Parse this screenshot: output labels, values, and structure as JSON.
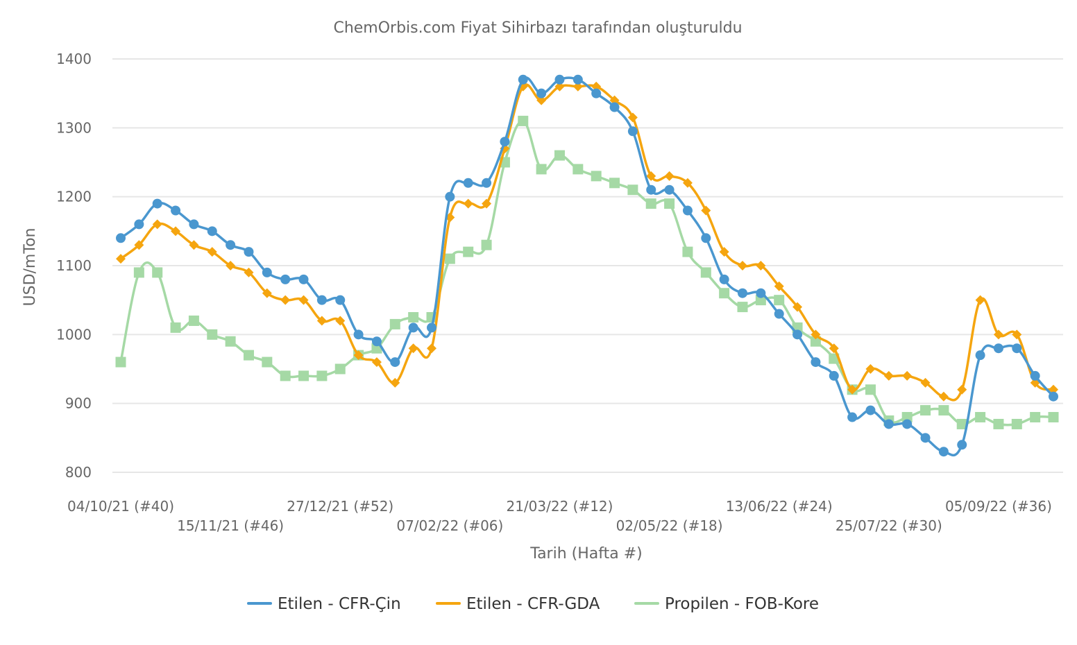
{
  "chart_data": {
    "type": "line",
    "subtitle": "ChemOrbis.com Fiyat Sihirbazı tarafından oluşturuldu",
    "xlabel": "Tarih (Hafta #)",
    "ylabel": "USD/mTon",
    "ylim": [
      800,
      1400
    ],
    "yticks": [
      "800",
      "900",
      "1000",
      "1100",
      "1200",
      "1300",
      "1400"
    ],
    "grid": "horizontal",
    "legend_position": "bottom",
    "x_tick_labels": [
      {
        "index": 0,
        "label": "04/10/21 (#40)",
        "row": 0
      },
      {
        "index": 6,
        "label": "15/11/21 (#46)",
        "row": 1
      },
      {
        "index": 12,
        "label": "27/12/21 (#52)",
        "row": 0
      },
      {
        "index": 18,
        "label": "07/02/22 (#06)",
        "row": 1
      },
      {
        "index": 24,
        "label": "21/03/22 (#12)",
        "row": 0
      },
      {
        "index": 30,
        "label": "02/05/22 (#18)",
        "row": 1
      },
      {
        "index": 36,
        "label": "13/06/22 (#24)",
        "row": 0
      },
      {
        "index": 42,
        "label": "25/07/22 (#30)",
        "row": 1
      },
      {
        "index": 48,
        "label": "05/09/22 (#36)",
        "row": 0
      }
    ],
    "series": [
      {
        "name": "Etilen - CFR-Çin",
        "color": "#4a97cf",
        "marker": "circle",
        "values": [
          1140,
          1160,
          1190,
          1180,
          1160,
          1150,
          1130,
          1120,
          1090,
          1080,
          1080,
          1050,
          1050,
          1000,
          990,
          960,
          1010,
          1010,
          1200,
          1220,
          1220,
          1280,
          1370,
          1350,
          1370,
          1370,
          1350,
          1330,
          1295,
          1210,
          1210,
          1180,
          1140,
          1080,
          1060,
          1060,
          1030,
          1000,
          960,
          940,
          880,
          890,
          870,
          870,
          850,
          830,
          840,
          970,
          980,
          980,
          940,
          910
        ]
      },
      {
        "name": "Etilen - CFR-GDA",
        "color": "#f5a50f",
        "marker": "diamond",
        "values": [
          1110,
          1130,
          1160,
          1150,
          1130,
          1120,
          1100,
          1090,
          1060,
          1050,
          1050,
          1020,
          1020,
          970,
          960,
          930,
          980,
          980,
          1170,
          1190,
          1190,
          1270,
          1360,
          1340,
          1360,
          1360,
          1360,
          1340,
          1315,
          1230,
          1230,
          1220,
          1180,
          1120,
          1100,
          1100,
          1070,
          1040,
          1000,
          980,
          920,
          950,
          940,
          940,
          930,
          910,
          920,
          1050,
          1000,
          1000,
          930,
          920
        ]
      },
      {
        "name": "Propilen - FOB-Kore",
        "color": "#a5d9a5",
        "marker": "square",
        "values": [
          960,
          1090,
          1090,
          1010,
          1020,
          1000,
          990,
          970,
          960,
          940,
          940,
          940,
          950,
          970,
          980,
          1015,
          1025,
          1025,
          1110,
          1120,
          1130,
          1250,
          1310,
          1240,
          1260,
          1240,
          1230,
          1220,
          1210,
          1190,
          1190,
          1120,
          1090,
          1060,
          1040,
          1050,
          1050,
          1010,
          990,
          965,
          920,
          920,
          875,
          880,
          890,
          890,
          870,
          880,
          870,
          870,
          880,
          880
        ]
      }
    ]
  }
}
